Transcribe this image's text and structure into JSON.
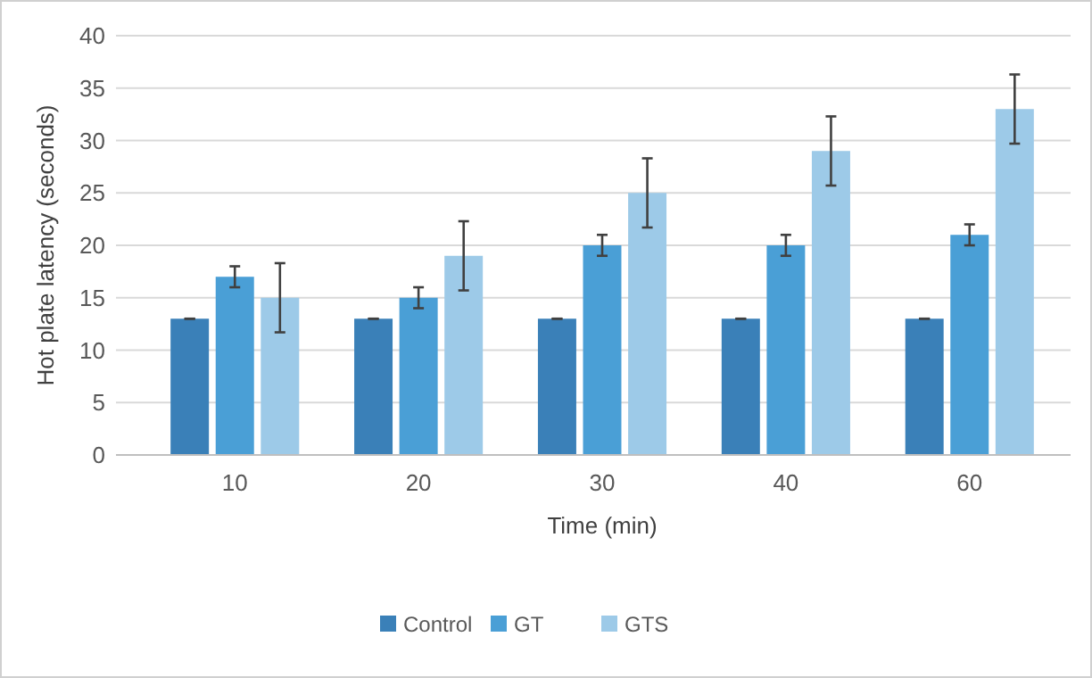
{
  "chart_data": {
    "type": "bar",
    "xlabel": "Time (min)",
    "ylabel": "Hot plate latency (seconds)",
    "categories": [
      "10",
      "20",
      "30",
      "40",
      "60"
    ],
    "series": [
      {
        "name": "Control",
        "color": "#3a80b8",
        "values": [
          13,
          13,
          13,
          13,
          13
        ],
        "errors": [
          0,
          0,
          0,
          0,
          0
        ]
      },
      {
        "name": "GT",
        "color": "#4a9fd6",
        "values": [
          17,
          15,
          20,
          20,
          21
        ],
        "errors": [
          1,
          1,
          1,
          1,
          1
        ]
      },
      {
        "name": "GTS",
        "color": "#9dcae8",
        "values": [
          15,
          19,
          25,
          29,
          33
        ],
        "errors": [
          3.3,
          3.3,
          3.3,
          3.3,
          3.3
        ]
      }
    ],
    "ylim": [
      0,
      40
    ],
    "yticks": [
      0,
      5,
      10,
      15,
      20,
      25,
      30,
      35,
      40
    ],
    "grid": "y",
    "legend": "bottom"
  }
}
